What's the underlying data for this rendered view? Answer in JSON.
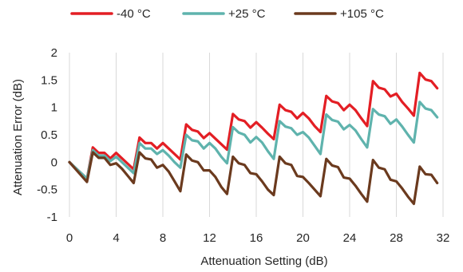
{
  "chart_data": {
    "type": "line",
    "title": "",
    "xlabel": "Attenuation Setting (dB)",
    "ylabel": "Attenuation Error (dB)",
    "xlim": [
      0,
      32
    ],
    "ylim": [
      -1,
      2
    ],
    "xticks": [
      0,
      4,
      8,
      12,
      16,
      20,
      24,
      28,
      32
    ],
    "yticks": [
      -1,
      -0.5,
      0,
      0.5,
      1,
      1.5,
      2
    ],
    "xtick_labels": [
      "0",
      "4",
      "8",
      "12",
      "16",
      "20",
      "24",
      "28",
      "32"
    ],
    "ytick_labels": [
      "-1",
      "-0.5",
      "0",
      "0.5",
      "1",
      "1.5",
      "2"
    ],
    "grid": "vertical",
    "legend_position": "top",
    "x": [
      0,
      0.5,
      1,
      1.5,
      2,
      2.5,
      3,
      3.5,
      4,
      4.5,
      5,
      5.5,
      6,
      6.5,
      7,
      7.5,
      8,
      8.5,
      9,
      9.5,
      10,
      10.5,
      11,
      11.5,
      12,
      12.5,
      13,
      13.5,
      14,
      14.5,
      15,
      15.5,
      16,
      16.5,
      17,
      17.5,
      18,
      18.5,
      19,
      19.5,
      20,
      20.5,
      21,
      21.5,
      22,
      22.5,
      23,
      23.5,
      24,
      24.5,
      25,
      25.5,
      26,
      26.5,
      27,
      27.5,
      28,
      28.5,
      29,
      29.5,
      30,
      30.5,
      31,
      31.5
    ],
    "series": [
      {
        "name": "-40 °C",
        "color": "#e31e24",
        "values": [
          0.0,
          -0.1,
          -0.2,
          -0.3,
          0.27,
          0.17,
          0.17,
          0.07,
          0.17,
          0.07,
          -0.03,
          -0.13,
          0.45,
          0.35,
          0.35,
          0.25,
          0.35,
          0.25,
          0.15,
          0.05,
          0.69,
          0.59,
          0.56,
          0.44,
          0.53,
          0.43,
          0.33,
          0.23,
          0.88,
          0.78,
          0.75,
          0.63,
          0.73,
          0.63,
          0.52,
          0.42,
          1.05,
          0.95,
          0.92,
          0.8,
          0.9,
          0.8,
          0.66,
          0.55,
          1.21,
          1.11,
          1.08,
          0.95,
          1.05,
          0.95,
          0.8,
          0.66,
          1.48,
          1.36,
          1.33,
          1.2,
          1.25,
          1.1,
          0.98,
          0.85,
          1.63,
          1.51,
          1.48,
          1.35
        ]
      },
      {
        "name": "+25 °C",
        "color": "#5fb3ad",
        "values": [
          0.0,
          -0.1,
          -0.2,
          -0.3,
          0.22,
          0.12,
          0.12,
          0.02,
          0.1,
          0.0,
          -0.1,
          -0.2,
          0.35,
          0.25,
          0.25,
          0.15,
          0.22,
          0.12,
          0.0,
          -0.1,
          0.5,
          0.4,
          0.38,
          0.25,
          0.35,
          0.25,
          0.1,
          -0.02,
          0.64,
          0.54,
          0.5,
          0.36,
          0.46,
          0.36,
          0.2,
          0.06,
          0.75,
          0.65,
          0.62,
          0.5,
          0.55,
          0.45,
          0.3,
          0.15,
          0.87,
          0.77,
          0.74,
          0.6,
          0.68,
          0.58,
          0.42,
          0.27,
          0.97,
          0.87,
          0.84,
          0.7,
          0.78,
          0.65,
          0.5,
          0.36,
          1.1,
          0.98,
          0.95,
          0.82
        ]
      },
      {
        "name": "+105 °C",
        "color": "#6b3a1e",
        "values": [
          0.0,
          -0.12,
          -0.24,
          -0.36,
          0.18,
          0.08,
          0.08,
          -0.05,
          -0.02,
          -0.12,
          -0.25,
          -0.38,
          0.18,
          0.07,
          0.05,
          -0.1,
          -0.05,
          -0.17,
          -0.35,
          -0.53,
          0.14,
          0.03,
          0.0,
          -0.15,
          -0.15,
          -0.27,
          -0.45,
          -0.58,
          0.1,
          -0.02,
          -0.05,
          -0.2,
          -0.22,
          -0.35,
          -0.5,
          -0.6,
          0.1,
          -0.02,
          -0.05,
          -0.25,
          -0.27,
          -0.38,
          -0.5,
          -0.62,
          0.06,
          -0.06,
          -0.09,
          -0.28,
          -0.3,
          -0.43,
          -0.58,
          -0.72,
          0.04,
          -0.1,
          -0.13,
          -0.32,
          -0.35,
          -0.48,
          -0.63,
          -0.76,
          -0.08,
          -0.22,
          -0.23,
          -0.38
        ]
      }
    ]
  }
}
